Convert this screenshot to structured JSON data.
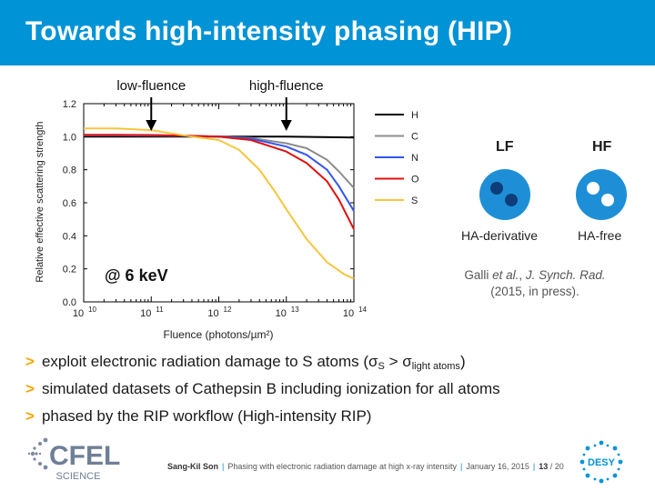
{
  "header": {
    "title": "Towards high-intensity phasing (HIP)"
  },
  "chart_data": {
    "type": "line",
    "xlabel": "Fluence (photons/µm²)",
    "ylabel": "Relative effective scattering strength",
    "x_scale": "log",
    "xlim": [
      10000000000.0,
      100000000000000.0
    ],
    "ylim": [
      0.0,
      1.2
    ],
    "x_ticks": [
      {
        "value": 10000000000.0,
        "base": "10",
        "exp": "10"
      },
      {
        "value": 100000000000.0,
        "base": "10",
        "exp": "11"
      },
      {
        "value": 1000000000000.0,
        "base": "10",
        "exp": "12"
      },
      {
        "value": 10000000000000.0,
        "base": "10",
        "exp": "13"
      },
      {
        "value": 100000000000000.0,
        "base": "10",
        "exp": "14"
      }
    ],
    "y_ticks": [
      "0.0",
      "0.2",
      "0.4",
      "0.6",
      "0.8",
      "1.0",
      "1.2"
    ],
    "grid": false,
    "legend_position": "right",
    "annotations": [
      {
        "text": "low-fluence",
        "x": 100000000000.0
      },
      {
        "text": "high-fluence",
        "x": 10000000000000.0
      },
      {
        "text": "@ 6 keV"
      }
    ],
    "series": [
      {
        "name": "H",
        "color": "#000000",
        "x": [
          10000000000.0,
          100000000000.0,
          1000000000000.0,
          10000000000000.0,
          100000000000000.0
        ],
        "y": [
          1.0,
          1.0,
          1.0,
          1.0,
          0.995
        ]
      },
      {
        "name": "C",
        "color": "#8c8c8c",
        "x": [
          10000000000.0,
          30000000000.0,
          100000000000.0,
          300000000000.0,
          1000000000000.0,
          3000000000000.0,
          10000000000000.0,
          20000000000000.0,
          40000000000000.0,
          60000000000000.0,
          100000000000000.0
        ],
        "y": [
          1.008,
          1.008,
          1.007,
          1.005,
          1.0,
          0.992,
          0.96,
          0.93,
          0.86,
          0.79,
          0.69
        ]
      },
      {
        "name": "N",
        "color": "#3355ee",
        "x": [
          10000000000.0,
          30000000000.0,
          100000000000.0,
          300000000000.0,
          1000000000000.0,
          3000000000000.0,
          10000000000000.0,
          20000000000000.0,
          40000000000000.0,
          60000000000000.0,
          100000000000000.0
        ],
        "y": [
          1.01,
          1.01,
          1.009,
          1.006,
          1.0,
          0.988,
          0.94,
          0.89,
          0.8,
          0.7,
          0.55
        ]
      },
      {
        "name": "O",
        "color": "#e01010",
        "x": [
          10000000000.0,
          30000000000.0,
          100000000000.0,
          300000000000.0,
          1000000000000.0,
          3000000000000.0,
          10000000000000.0,
          20000000000000.0,
          40000000000000.0,
          60000000000000.0,
          100000000000000.0
        ],
        "y": [
          1.012,
          1.012,
          1.01,
          1.007,
          1.0,
          0.98,
          0.91,
          0.84,
          0.73,
          0.62,
          0.44
        ]
      },
      {
        "name": "S",
        "color": "#f7c53a",
        "x": [
          10000000000.0,
          30000000000.0,
          100000000000.0,
          200000000000.0,
          400000000000.0,
          1000000000000.0,
          2000000000000.0,
          4000000000000.0,
          7000000000000.0,
          10000000000000.0,
          20000000000000.0,
          40000000000000.0,
          70000000000000.0,
          100000000000000.0
        ],
        "y": [
          1.05,
          1.05,
          1.04,
          1.02,
          1.0,
          0.98,
          0.92,
          0.8,
          0.66,
          0.56,
          0.38,
          0.24,
          0.17,
          0.14
        ]
      }
    ]
  },
  "right_panel": {
    "lf_label": "LF",
    "hf_label": "HF",
    "lf_crystal_label": "HA-derivative",
    "hf_crystal_label": "HA-free",
    "citation_author": "Galli",
    "citation_etal": "et al.",
    "citation_journal": "J. Synch. Rad.",
    "citation_rest": "(2015, in press).",
    "circle_color": "#1e8fd6",
    "heavy_atom_color": "#0e3d7a",
    "light_atom_color": "#ffffff"
  },
  "bullets": {
    "b1_text": "exploit electronic radiation damage to S atoms (σ",
    "b1_sub1": "S",
    "b1_mid": " > σ",
    "b1_sub2": "light atoms",
    "b1_end": ")",
    "b2_text": "simulated datasets of Cathepsin B including ionization for all atoms",
    "b3_text": "phased by the RIP workflow (High-intensity RIP)"
  },
  "footer": {
    "author": "Sang-Kil Son",
    "talk": "Phasing with electronic radiation damage at high x-ray intensity",
    "date": "January 16, 2015",
    "page": "13",
    "total": "/ 20"
  },
  "logos": {
    "cfel_text": "CFEL",
    "cfel_sub": "SCIENCE",
    "desy_text": "DESY"
  },
  "colors": {
    "brand_blue": "#0093d6",
    "bullet_orange": "#f7a600"
  }
}
